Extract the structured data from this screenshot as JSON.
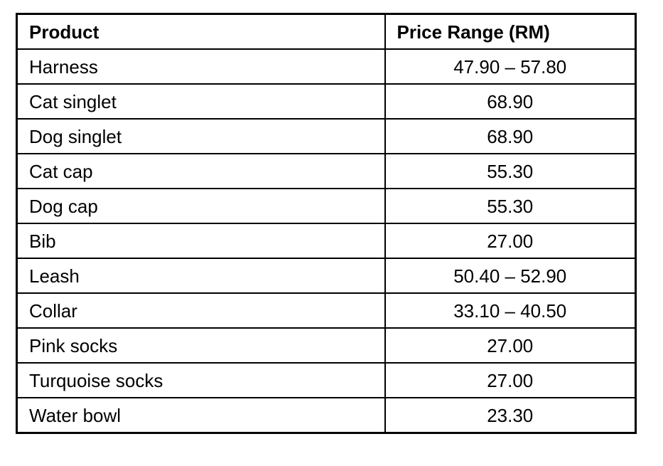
{
  "colors": {
    "background": "#ffffff",
    "border": "#000000",
    "text": "#000000"
  },
  "table": {
    "columns": [
      "Product",
      "Price Range (RM)"
    ],
    "rows": [
      {
        "product": "Harness",
        "price": "47.90 – 57.80"
      },
      {
        "product": "Cat singlet",
        "price": "68.90"
      },
      {
        "product": "Dog singlet",
        "price": "68.90"
      },
      {
        "product": "Cat cap",
        "price": "55.30"
      },
      {
        "product": "Dog cap",
        "price": "55.30"
      },
      {
        "product": "Bib",
        "price": "27.00"
      },
      {
        "product": "Leash",
        "price": "50.40 – 52.90"
      },
      {
        "product": "Collar",
        "price": "33.10 – 40.50"
      },
      {
        "product": "Pink socks",
        "price": "27.00"
      },
      {
        "product": "Turquoise socks",
        "price": "27.00"
      },
      {
        "product": "Water bowl",
        "price": "23.30"
      }
    ]
  }
}
